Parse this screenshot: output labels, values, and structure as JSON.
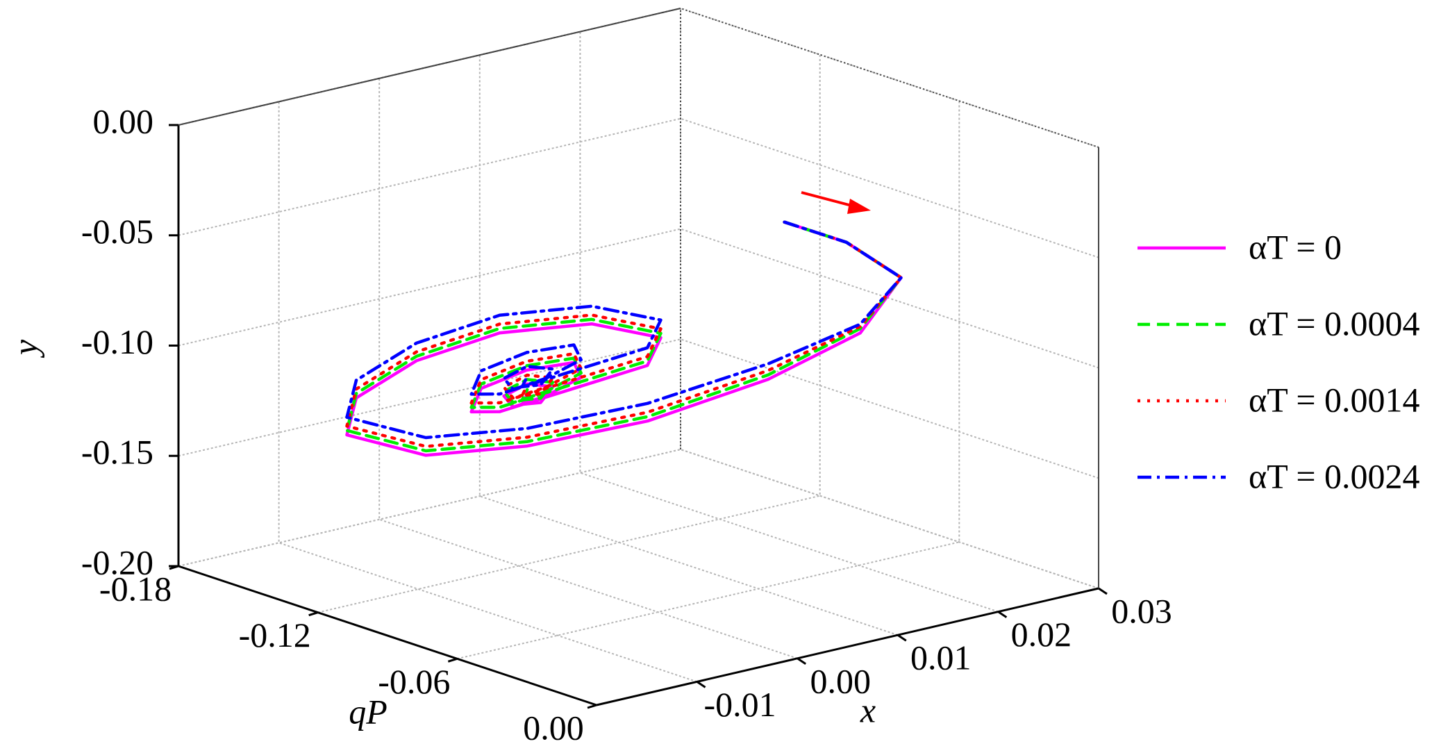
{
  "chart_data": {
    "type": "line3d",
    "x_label": "x",
    "y_label": "y",
    "q_label": "qP",
    "xlim": [
      -0.02,
      0.03
    ],
    "qlim": [
      -0.18,
      0
    ],
    "ylim": [
      -0.2,
      0
    ],
    "xticks": [
      -0.01,
      {
        "value": 0,
        "label": "0.00"
      },
      0.01,
      0.02,
      0.03
    ],
    "qticks": [
      -0.18,
      -0.12,
      -0.06,
      {
        "value": 0,
        "label": "0.00"
      }
    ],
    "yticks": [
      {
        "value": 0,
        "label": "0.00"
      },
      -0.05,
      {
        "value": -0.1,
        "label": "-0.10"
      },
      -0.15,
      {
        "value": -0.2,
        "label": "-0.20"
      }
    ],
    "grid": true,
    "legend": "right",
    "series": [
      {
        "name": "αT = 0",
        "color": "#ff00ff",
        "dash": "solid",
        "x": [
          0.0159,
          0.0218,
          0.0246,
          0.0175,
          0.0086,
          -0.0027,
          -0.0126,
          -0.0194,
          -0.0181,
          -0.0118,
          -0.0025,
          0.0065,
          0.0135,
          0.0151,
          0.0102,
          0.0018,
          -0.0066,
          -0.0083,
          -0.0036,
          0.0023,
          0.0064,
          0.0042,
          -0.0011,
          -0.005,
          -0.0036,
          -0.0001,
          0.0009,
          -0.0026,
          -0.004,
          -0.0019
        ],
        "q": [
          -0.0743,
          -0.0731,
          -0.0617,
          -0.0486,
          -0.0498,
          -0.0528,
          -0.0618,
          -0.0761,
          -0.1157,
          -0.1389,
          -0.1532,
          -0.1563,
          -0.1469,
          -0.1241,
          -0.1087,
          -0.1042,
          -0.0996,
          -0.1045,
          -0.1206,
          -0.1265,
          -0.1239,
          -0.1113,
          -0.1034,
          -0.1007,
          -0.1108,
          -0.1159,
          -0.1092,
          -0.0993,
          -0.1012,
          -0.1081
        ],
        "values": [
          -0.045,
          -0.06,
          -0.075,
          -0.088,
          -0.1,
          -0.108,
          -0.112,
          -0.114,
          -0.12,
          -0.118,
          -0.116,
          -0.114,
          -0.114,
          -0.114,
          -0.116,
          -0.116,
          -0.116,
          -0.116,
          -0.116,
          -0.116,
          -0.116,
          -0.116,
          -0.116,
          -0.116,
          -0.116,
          -0.116,
          -0.116,
          -0.116,
          -0.116,
          -0.116
        ]
      },
      {
        "name": "αT = 0.0004",
        "color": "#00ee00",
        "dash": "dashed",
        "x": [
          0.0159,
          0.0218,
          0.0246,
          0.0175,
          0.0086,
          -0.0027,
          -0.0126,
          -0.0194,
          -0.0181,
          -0.0118,
          -0.0025,
          0.0065,
          0.0135,
          0.0151,
          0.0102,
          0.0018,
          -0.0066,
          -0.0083,
          -0.0036,
          0.0023,
          0.0064,
          0.0042,
          -0.0011,
          -0.005,
          -0.0036,
          -0.0001,
          0.0009,
          -0.0026,
          -0.004,
          -0.0019
        ],
        "q": [
          -0.0743,
          -0.0731,
          -0.0617,
          -0.0486,
          -0.0498,
          -0.0528,
          -0.0618,
          -0.0761,
          -0.1157,
          -0.1389,
          -0.1532,
          -0.1563,
          -0.1469,
          -0.1241,
          -0.1087,
          -0.1042,
          -0.0996,
          -0.1045,
          -0.1206,
          -0.1265,
          -0.1239,
          -0.1113,
          -0.1034,
          -0.1007,
          -0.1108,
          -0.1159,
          -0.1092,
          -0.0993,
          -0.1012,
          -0.1081
        ],
        "values": [
          -0.045,
          -0.06,
          -0.075,
          -0.086,
          -0.098,
          -0.106,
          -0.11,
          -0.112,
          -0.118,
          -0.116,
          -0.114,
          -0.112,
          -0.112,
          -0.112,
          -0.114,
          -0.114,
          -0.114,
          -0.114,
          -0.114,
          -0.114,
          -0.114,
          -0.114,
          -0.114,
          -0.114,
          -0.114,
          -0.114,
          -0.114,
          -0.114,
          -0.114,
          -0.114
        ]
      },
      {
        "name": "αT = 0.0014",
        "color": "#ff0000",
        "dash": "dotted",
        "x": [
          0.0159,
          0.0218,
          0.0246,
          0.0175,
          0.0086,
          -0.0027,
          -0.0126,
          -0.0194,
          -0.0181,
          -0.0118,
          -0.0025,
          0.0065,
          0.0135,
          0.0151,
          0.0102,
          0.0018,
          -0.0066,
          -0.0083,
          -0.0036,
          0.0023,
          0.0064,
          0.0042,
          -0.0011,
          -0.005,
          -0.0036,
          -0.0001,
          0.0009,
          -0.0026,
          -0.004,
          -0.0019
        ],
        "q": [
          -0.0743,
          -0.0731,
          -0.0617,
          -0.0486,
          -0.0498,
          -0.0528,
          -0.0618,
          -0.0761,
          -0.1157,
          -0.1389,
          -0.1532,
          -0.1563,
          -0.1469,
          -0.1241,
          -0.1087,
          -0.1042,
          -0.0996,
          -0.1045,
          -0.1206,
          -0.1265,
          -0.1239,
          -0.1113,
          -0.1034,
          -0.1007,
          -0.1108,
          -0.1159,
          -0.1092,
          -0.0993,
          -0.1012,
          -0.1081
        ],
        "values": [
          -0.045,
          -0.06,
          -0.075,
          -0.085,
          -0.096,
          -0.104,
          -0.108,
          -0.11,
          -0.116,
          -0.114,
          -0.112,
          -0.11,
          -0.11,
          -0.11,
          -0.112,
          -0.112,
          -0.112,
          -0.112,
          -0.112,
          -0.112,
          -0.112,
          -0.112,
          -0.112,
          -0.112,
          -0.112,
          -0.112,
          -0.112,
          -0.112,
          -0.112,
          -0.112
        ]
      },
      {
        "name": "αT = 0.0024",
        "color": "#0000ff",
        "dash": "dashdot",
        "x": [
          0.0159,
          0.0218,
          0.0246,
          0.0175,
          0.0086,
          -0.0027,
          -0.0126,
          -0.0194,
          -0.0181,
          -0.0118,
          -0.0025,
          0.0065,
          0.0135,
          0.0151,
          0.0102,
          0.0018,
          -0.0066,
          -0.0083,
          -0.0036,
          0.0023,
          0.0064,
          0.0042,
          -0.0011,
          -0.005,
          -0.0036,
          -0.0001,
          0.0009,
          -0.0026,
          -0.004,
          -0.0019
        ],
        "q": [
          -0.0743,
          -0.0731,
          -0.0617,
          -0.0486,
          -0.0498,
          -0.0528,
          -0.0618,
          -0.0761,
          -0.1157,
          -0.1389,
          -0.1532,
          -0.1563,
          -0.1469,
          -0.1241,
          -0.1087,
          -0.1042,
          -0.0996,
          -0.1045,
          -0.1206,
          -0.1265,
          -0.1239,
          -0.1113,
          -0.1034,
          -0.1007,
          -0.1108,
          -0.1159,
          -0.1092,
          -0.0993,
          -0.1012,
          -0.1081
        ],
        "values": [
          -0.045,
          -0.06,
          -0.075,
          -0.084,
          -0.093,
          -0.1,
          -0.104,
          -0.106,
          -0.112,
          -0.11,
          -0.108,
          -0.106,
          -0.106,
          -0.106,
          -0.108,
          -0.108,
          -0.108,
          -0.108,
          -0.108,
          -0.108,
          -0.108,
          -0.108,
          -0.108,
          -0.108,
          -0.108,
          -0.108,
          -0.108,
          -0.108,
          -0.108,
          -0.108
        ]
      }
    ]
  }
}
